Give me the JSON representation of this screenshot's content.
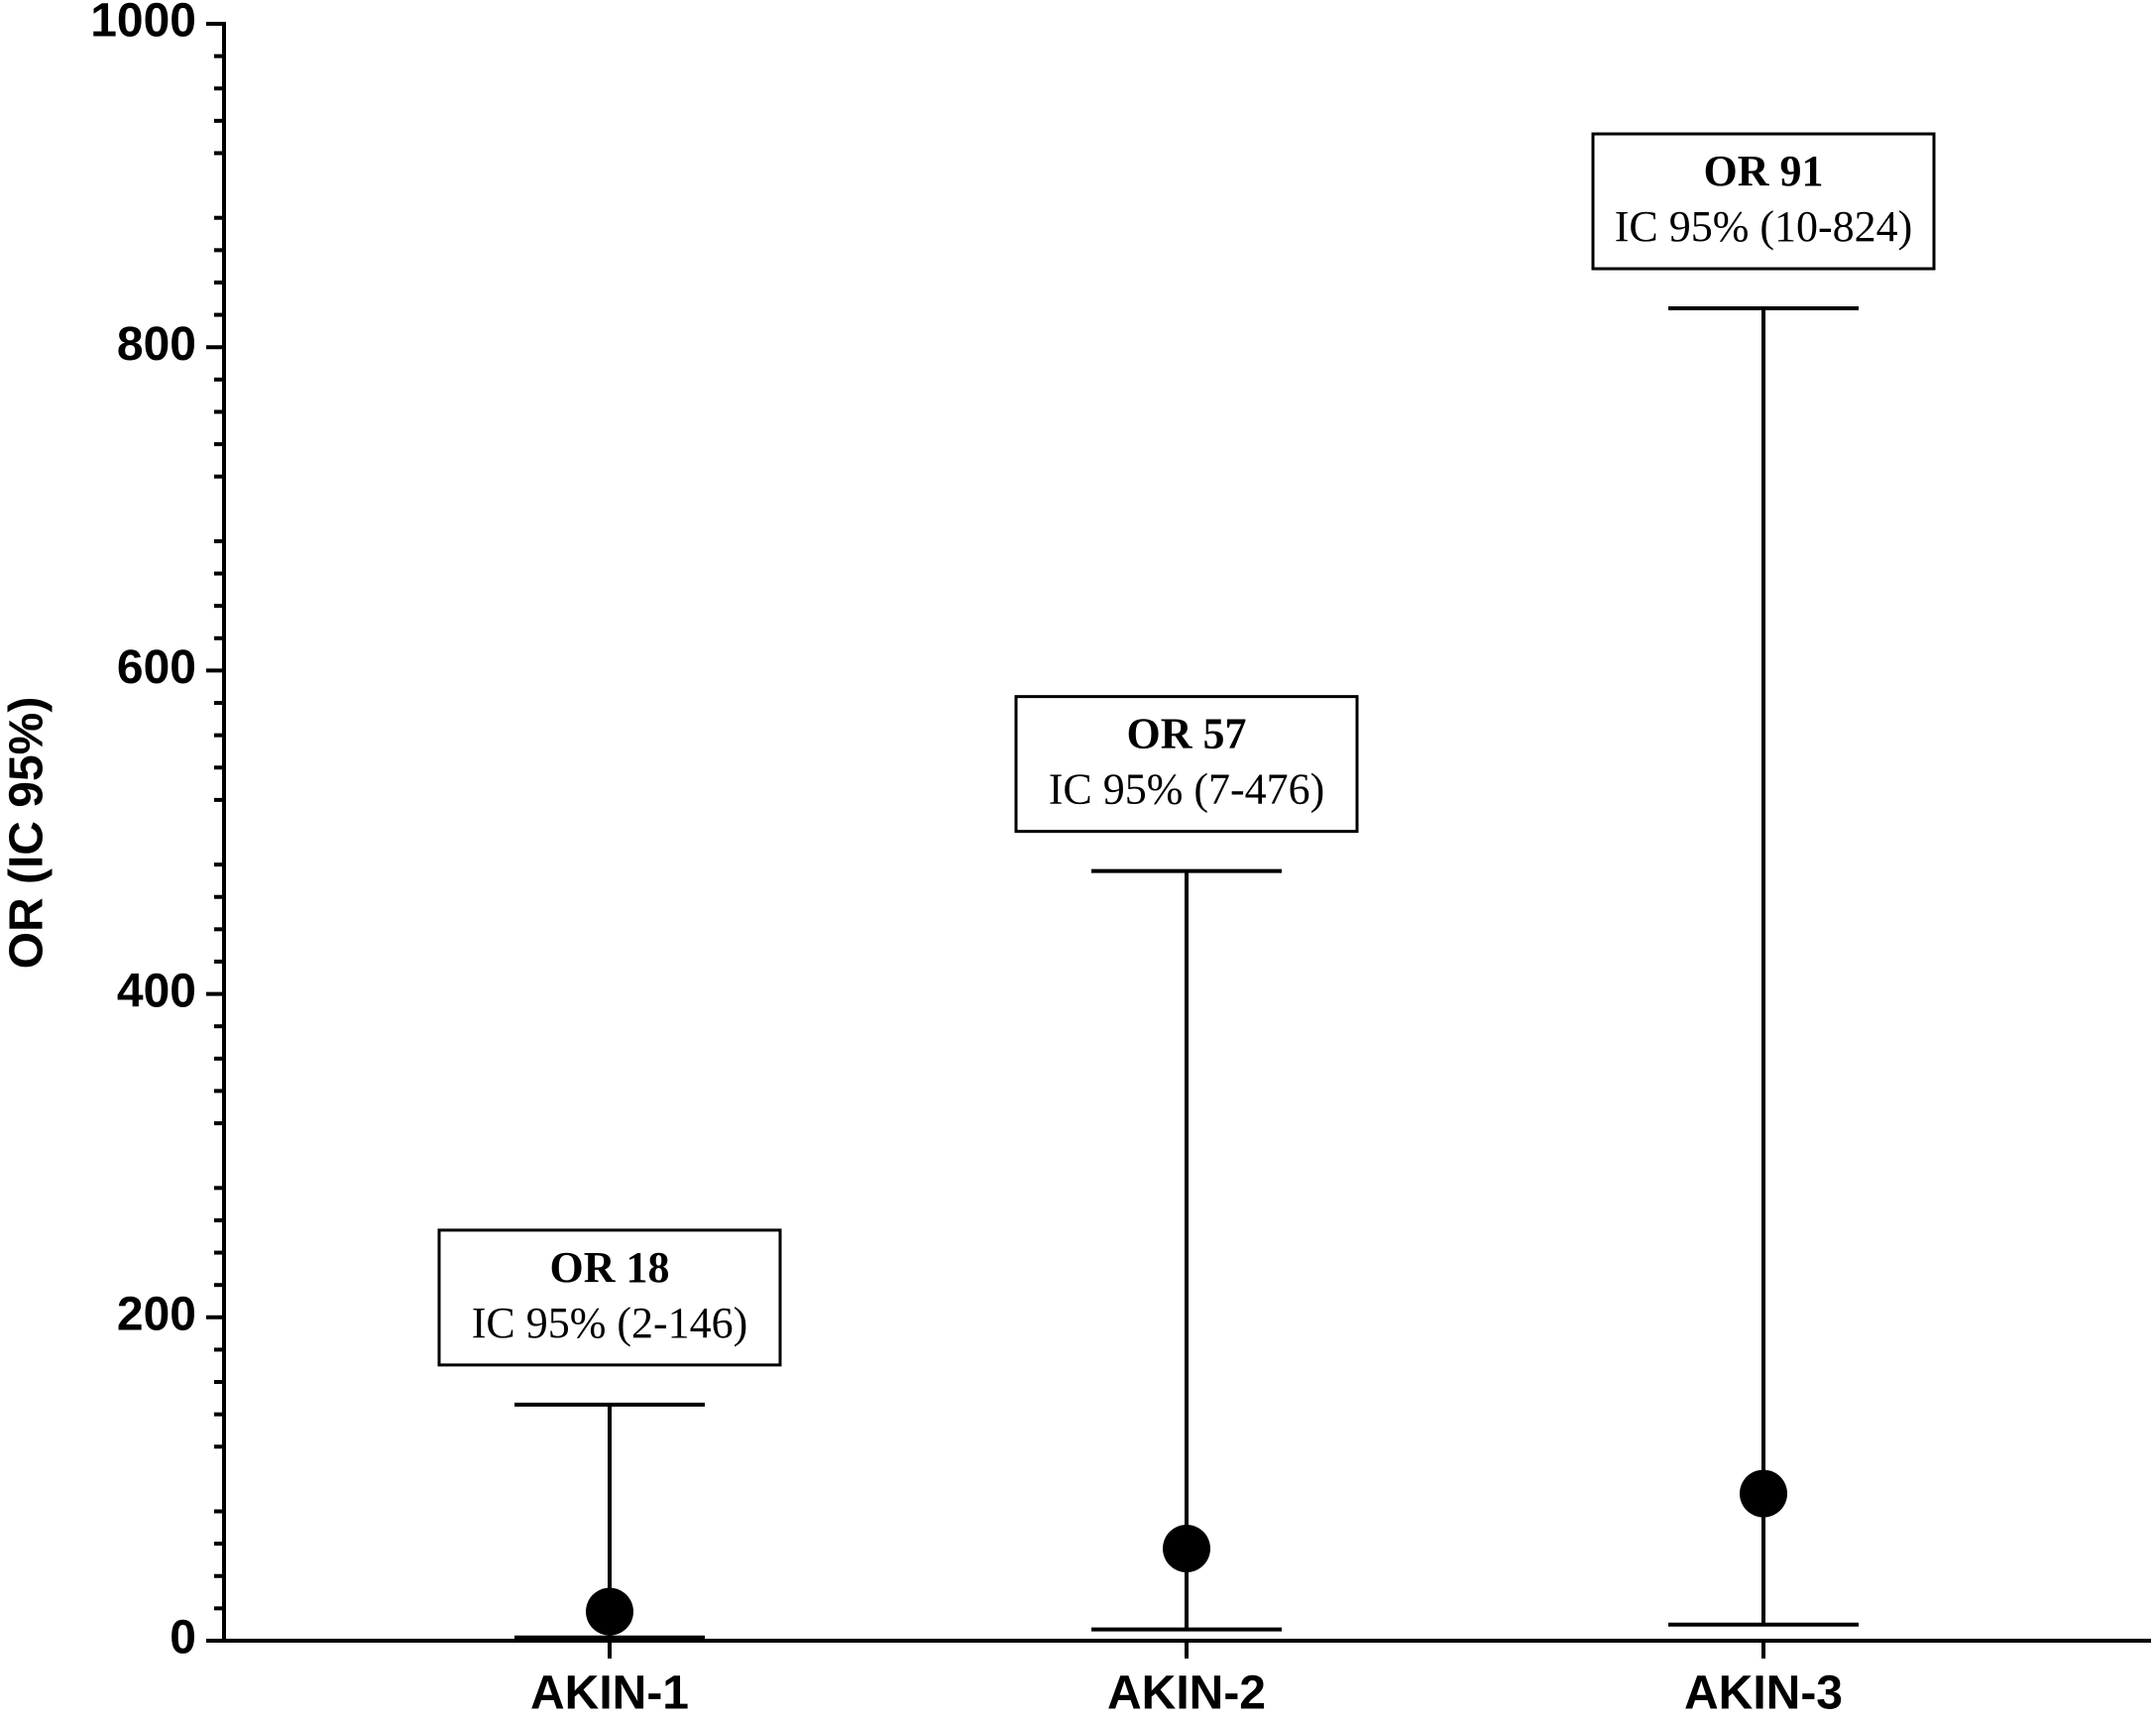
{
  "chart_data": {
    "type": "point",
    "y_label": "OR (IC 95%)",
    "categories": [
      "AKIN-1",
      "AKIN-2",
      "AKIN-3"
    ],
    "values": [
      18,
      57,
      91
    ],
    "lower": [
      2,
      7,
      10
    ],
    "upper": [
      146,
      476,
      824
    ],
    "color": "#000000",
    "annotations": [
      {
        "title": "OR 18",
        "text": "IC 95% (2-146)"
      },
      {
        "title": "OR 57",
        "text": "IC 95% (7-476)"
      },
      {
        "title": "OR 91",
        "text": "IC 95% (10-824)"
      }
    ],
    "ylim": [
      0,
      1000
    ],
    "yticks": [
      0,
      200,
      400,
      600,
      800,
      1000
    ],
    "minor_yticks": [
      20,
      40,
      60,
      80,
      120,
      140,
      160,
      180,
      220,
      240,
      260,
      280,
      320,
      340,
      360,
      380,
      420,
      440,
      460,
      480,
      520,
      540,
      560,
      580,
      620,
      640,
      660,
      680,
      720,
      740,
      760,
      780,
      820,
      840,
      860,
      880,
      920,
      940,
      960,
      980
    ],
    "grid": false
  }
}
